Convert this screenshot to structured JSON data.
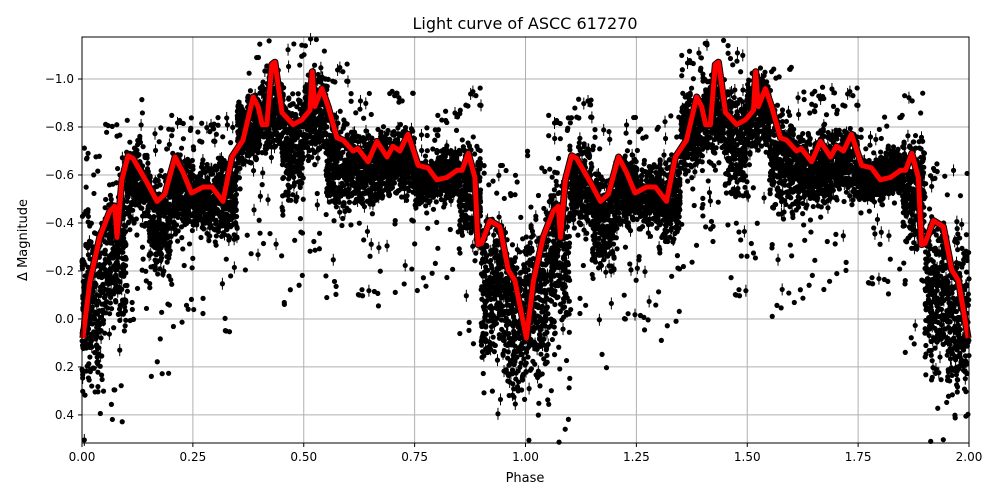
{
  "chart_data": {
    "type": "scatter",
    "title": "Light curve of ASCC 617270",
    "xlabel": "Phase",
    "ylabel": "Δ Magnitude",
    "xlim": [
      0,
      2
    ],
    "ylim": [
      0.517,
      -1.175
    ],
    "y_inverted": true,
    "grid": true,
    "x_ticks": [
      "0.00",
      "0.25",
      "0.50",
      "0.75",
      "1.00",
      "1.25",
      "1.50",
      "1.75",
      "2.00"
    ],
    "x_tick_values": [
      0,
      0.25,
      0.5,
      0.75,
      1,
      1.25,
      1.5,
      1.75,
      2
    ],
    "y_ticks": [
      "−1.0",
      "−0.8",
      "−0.6",
      "−0.4",
      "−0.2",
      "0.0",
      "0.2",
      "0.4"
    ],
    "y_tick_values": [
      -1.0,
      -0.8,
      -0.6,
      -0.4,
      -0.2,
      0.0,
      0.2,
      0.4
    ],
    "colors": {
      "points": "#000000",
      "fit": "#ff0000",
      "grid": "#b0b0b0"
    },
    "observations_envelope": {
      "description_units": "phase bin start, lower and upper magnitude of the dense point cloud (repeats each cycle)",
      "bins": [
        [
          0.0,
          -0.6,
          0.5
        ],
        [
          0.05,
          -0.75,
          0.2
        ],
        [
          0.1,
          -0.8,
          -0.3
        ],
        [
          0.15,
          -0.7,
          -0.1
        ],
        [
          0.2,
          -0.75,
          -0.3
        ],
        [
          0.25,
          -0.7,
          -0.3
        ],
        [
          0.3,
          -0.75,
          -0.25
        ],
        [
          0.35,
          -1.0,
          -0.55
        ],
        [
          0.4,
          -1.1,
          -0.6
        ],
        [
          0.45,
          -1.05,
          -0.4
        ],
        [
          0.5,
          -1.1,
          -0.6
        ],
        [
          0.55,
          -0.95,
          -0.35
        ],
        [
          0.6,
          -0.85,
          -0.4
        ],
        [
          0.65,
          -0.85,
          -0.4
        ],
        [
          0.7,
          -0.85,
          -0.45
        ],
        [
          0.75,
          -0.7,
          -0.45
        ],
        [
          0.8,
          -0.75,
          -0.45
        ],
        [
          0.85,
          -0.85,
          -0.2
        ],
        [
          0.9,
          -0.55,
          0.3
        ],
        [
          0.95,
          -0.5,
          0.5
        ]
      ]
    },
    "fit_curve": {
      "x": [
        0.002,
        0.018,
        0.04,
        0.063,
        0.074,
        0.079,
        0.09,
        0.104,
        0.115,
        0.146,
        0.169,
        0.187,
        0.21,
        0.228,
        0.247,
        0.273,
        0.293,
        0.318,
        0.338,
        0.363,
        0.386,
        0.397,
        0.406,
        0.417,
        0.428,
        0.435,
        0.451,
        0.476,
        0.496,
        0.514,
        0.519,
        0.525,
        0.541,
        0.555,
        0.575,
        0.589,
        0.611,
        0.622,
        0.645,
        0.665,
        0.688,
        0.701,
        0.717,
        0.735,
        0.758,
        0.78,
        0.8,
        0.823,
        0.846,
        0.857,
        0.871,
        0.886,
        0.893,
        0.901,
        0.92,
        0.942,
        0.961,
        0.976,
        1.002,
        1.018,
        1.04,
        1.063,
        1.074,
        1.079,
        1.09,
        1.104,
        1.115,
        1.146,
        1.169,
        1.187,
        1.21,
        1.228,
        1.247,
        1.273,
        1.293,
        1.318,
        1.338,
        1.363,
        1.386,
        1.397,
        1.406,
        1.417,
        1.428,
        1.435,
        1.451,
        1.476,
        1.496,
        1.514,
        1.519,
        1.525,
        1.541,
        1.555,
        1.575,
        1.589,
        1.611,
        1.622,
        1.645,
        1.665,
        1.688,
        1.701,
        1.717,
        1.735,
        1.758,
        1.78,
        1.8,
        1.823,
        1.846,
        1.857,
        1.871,
        1.886,
        1.893,
        1.901,
        1.92,
        1.942,
        1.961,
        1.976,
        1.998
      ],
      "y": [
        0.08,
        -0.16,
        -0.34,
        -0.45,
        -0.47,
        -0.34,
        -0.58,
        -0.68,
        -0.67,
        -0.57,
        -0.49,
        -0.52,
        -0.675,
        -0.61,
        -0.525,
        -0.55,
        -0.55,
        -0.49,
        -0.675,
        -0.745,
        -0.925,
        -0.885,
        -0.81,
        -0.81,
        -1.06,
        -1.07,
        -0.86,
        -0.81,
        -0.83,
        -0.87,
        -1.03,
        -0.885,
        -0.96,
        -0.885,
        -0.755,
        -0.745,
        -0.7,
        -0.71,
        -0.655,
        -0.74,
        -0.675,
        -0.72,
        -0.7,
        -0.77,
        -0.64,
        -0.63,
        -0.58,
        -0.59,
        -0.62,
        -0.62,
        -0.69,
        -0.59,
        -0.31,
        -0.315,
        -0.41,
        -0.385,
        -0.205,
        -0.16,
        0.08,
        -0.16,
        -0.34,
        -0.45,
        -0.47,
        -0.34,
        -0.58,
        -0.68,
        -0.67,
        -0.57,
        -0.49,
        -0.52,
        -0.675,
        -0.61,
        -0.525,
        -0.55,
        -0.55,
        -0.49,
        -0.675,
        -0.745,
        -0.925,
        -0.885,
        -0.81,
        -0.81,
        -1.06,
        -1.07,
        -0.86,
        -0.81,
        -0.83,
        -0.87,
        -1.03,
        -0.885,
        -0.96,
        -0.885,
        -0.755,
        -0.745,
        -0.7,
        -0.71,
        -0.655,
        -0.74,
        -0.675,
        -0.72,
        -0.7,
        -0.77,
        -0.64,
        -0.63,
        -0.58,
        -0.59,
        -0.62,
        -0.62,
        -0.69,
        -0.59,
        -0.31,
        -0.315,
        -0.41,
        -0.385,
        -0.205,
        -0.16,
        0.08
      ]
    }
  }
}
